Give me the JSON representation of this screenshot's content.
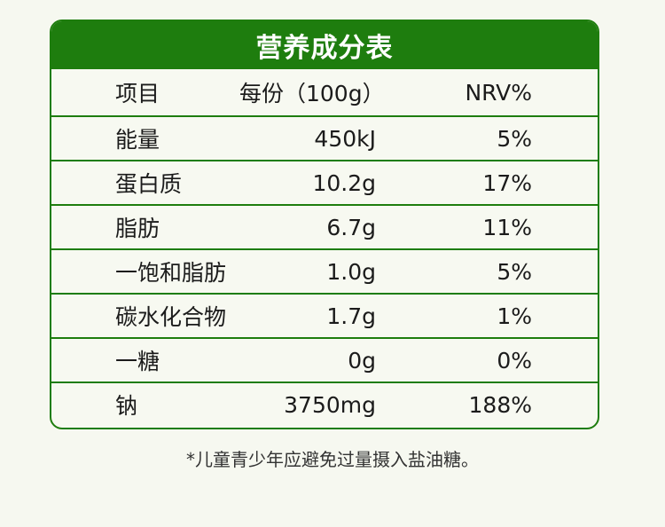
{
  "table": {
    "title": "营养成分表",
    "headers": {
      "item": "项目",
      "amount": "每份（100g）",
      "nrv": "NRV%"
    },
    "rows": [
      {
        "name": "能量",
        "amount": "450kJ",
        "nrv": "5%"
      },
      {
        "name": "蛋白质",
        "amount": "10.2g",
        "nrv": "17%"
      },
      {
        "name": "脂肪",
        "amount": "6.7g",
        "nrv": "11%"
      },
      {
        "name": "一饱和脂肪",
        "amount": "1.0g",
        "nrv": "5%"
      },
      {
        "name": "碳水化合物",
        "amount": "1.7g",
        "nrv": "1%"
      },
      {
        "name": "一糖",
        "amount": "0g",
        "nrv": "0%"
      },
      {
        "name": "钠",
        "amount": "3750mg",
        "nrv": "188%"
      }
    ]
  },
  "footnote": "*儿童青少年应避免过量摄入盐油糖。",
  "colors": {
    "accent": "#1e7d0e",
    "background": "#f6f8f0"
  }
}
